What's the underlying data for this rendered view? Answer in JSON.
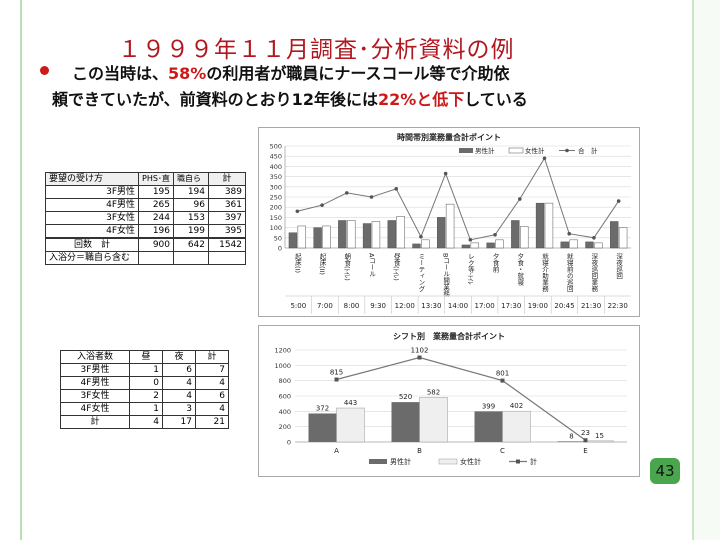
{
  "slide": {
    "title": "１９９９年１１月調査･分析資料の例",
    "line1_a": "この当時は、",
    "line1_b": "58%",
    "line1_c": "の利用者が職員にナースコール等で介助依",
    "line2_a": "頼できていたが、前資料のとおり12年後には",
    "line2_b": "22%と低下",
    "line2_c": "している",
    "page_number": "43",
    "accent_color": "#cc1a1a",
    "title_color": "#b0171f"
  },
  "table1": {
    "headers": [
      "要望の受け方",
      "PHS･直",
      "職自ら",
      "計"
    ],
    "rows": [
      [
        "3F男性",
        "195",
        "194",
        "389"
      ],
      [
        "4F男性",
        "265",
        "96",
        "361"
      ],
      [
        "3F女性",
        "244",
        "153",
        "397"
      ],
      [
        "4F女性",
        "196",
        "199",
        "395"
      ]
    ],
    "total": [
      "回数　計",
      "900",
      "642",
      "1542"
    ],
    "note": "入浴分＝職自ら含む"
  },
  "table2": {
    "headers": [
      "入浴者数",
      "昼",
      "夜",
      "計"
    ],
    "rows": [
      [
        "3F男性",
        "1",
        "6",
        "7"
      ],
      [
        "4F男性",
        "0",
        "4",
        "4"
      ],
      [
        "3F女性",
        "2",
        "4",
        "6"
      ],
      [
        "4F女性",
        "1",
        "3",
        "4"
      ],
      [
        "計",
        "4",
        "17",
        "21"
      ]
    ]
  },
  "chart_data": [
    {
      "type": "bar",
      "title": "時間帯別業務量合計ポイント",
      "categories": [
        "起床(I)",
        "起床(II)",
        "朝食(ﾄｲﾚ)",
        "Aコール",
        "昼食(ﾄｲﾚ)",
        "ミーティング",
        "Bコール開業務",
        "レク等-ﾄｲﾚ",
        "夕食前",
        "夕食・就寝",
        "就寝介助業務",
        "就寝前の巡回",
        "深夜巡回業務",
        "深夜巡回"
      ],
      "time_labels": [
        "5:00",
        "7:00",
        "8:00",
        "9:30",
        "12:00",
        "13:30",
        "14:00",
        "17:00",
        "17:30",
        "19:00",
        "20:45",
        "21:30",
        "22:30"
      ],
      "series": [
        {
          "name": "男性計",
          "values": [
            75,
            100,
            135,
            120,
            135,
            20,
            150,
            15,
            25,
            135,
            220,
            30,
            30,
            130
          ]
        },
        {
          "name": "女性計",
          "values": [
            108,
            108,
            135,
            130,
            155,
            40,
            215,
            25,
            40,
            105,
            220,
            40,
            25,
            100
          ]
        },
        {
          "name": "合　計",
          "values": [
            180,
            210,
            270,
            250,
            290,
            55,
            365,
            40,
            65,
            240,
            440,
            70,
            50,
            230
          ]
        }
      ],
      "ylim": [
        0,
        500
      ],
      "yticks": [
        "0",
        "50",
        "100",
        "150",
        "200",
        "250",
        "300",
        "350",
        "400",
        "450",
        "500"
      ],
      "legend": "top-right",
      "grid": true
    },
    {
      "type": "bar",
      "title": "シフト別　業務量合計ポイント",
      "categories": [
        "A",
        "B",
        "C",
        "E"
      ],
      "series": [
        {
          "name": "男性計",
          "values": [
            372,
            520,
            399,
            8
          ],
          "labels": [
            "372",
            "520",
            "399",
            "8"
          ]
        },
        {
          "name": "女性計",
          "values": [
            443,
            582,
            402,
            15
          ],
          "labels": [
            "443",
            "582",
            "402",
            "15"
          ]
        },
        {
          "name": "計",
          "values": [
            815,
            1102,
            801,
            23
          ],
          "labels": [
            "815",
            "1102",
            "801",
            "23"
          ]
        }
      ],
      "ylim": [
        0,
        1200
      ],
      "yticks": [
        "0",
        "200",
        "400",
        "600",
        "800",
        "1000",
        "1200"
      ],
      "legend": "bottom",
      "grid": true
    }
  ]
}
